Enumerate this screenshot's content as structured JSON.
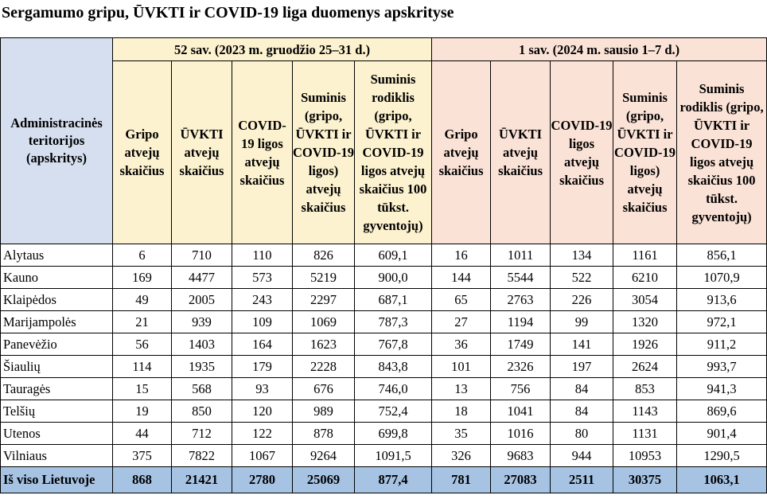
{
  "title": "Sergamumo gripu, ŪVKTI ir COVID-19 liga duomenys apskrityse",
  "header": {
    "admin": "Administracinės teritorijos (apskritys)",
    "period1": "52 sav. (2023 m.  gruodžio 25–31 d.)",
    "period2": "1 sav. (2024 m.  sausio 1–7 d.)",
    "cols": [
      "Gripo atvejų skaičius",
      "ŪVKTI atvejų skaičius",
      "COVID-19 ligos atvejų skaičius",
      "Suminis (gripo, ŪVKTI ir COVID-19 ligos) atvejų skaičius",
      "Suminis rodiklis (gripo, ŪVKTI ir COVID-19 ligos atvejų skaičius 100 tūkst. gyventojų)"
    ]
  },
  "rows": [
    {
      "name": "Alytaus",
      "v": [
        "6",
        "710",
        "110",
        "826",
        "609,1",
        "16",
        "1011",
        "134",
        "1161",
        "856,1"
      ]
    },
    {
      "name": "Kauno",
      "v": [
        "169",
        "4477",
        "573",
        "5219",
        "900,0",
        "144",
        "5544",
        "522",
        "6210",
        "1070,9"
      ]
    },
    {
      "name": "Klaipėdos",
      "v": [
        "49",
        "2005",
        "243",
        "2297",
        "687,1",
        "65",
        "2763",
        "226",
        "3054",
        "913,6"
      ]
    },
    {
      "name": "Marijampolės",
      "v": [
        "21",
        "939",
        "109",
        "1069",
        "787,3",
        "27",
        "1194",
        "99",
        "1320",
        "972,1"
      ]
    },
    {
      "name": "Panevėžio",
      "v": [
        "56",
        "1403",
        "164",
        "1623",
        "767,8",
        "36",
        "1749",
        "141",
        "1926",
        "911,2"
      ]
    },
    {
      "name": "Šiaulių",
      "v": [
        "114",
        "1935",
        "179",
        "2228",
        "843,8",
        "101",
        "2326",
        "197",
        "2624",
        "993,7"
      ]
    },
    {
      "name": "Tauragės",
      "v": [
        "15",
        "568",
        "93",
        "676",
        "746,0",
        "13",
        "756",
        "84",
        "853",
        "941,3"
      ]
    },
    {
      "name": "Telšių",
      "v": [
        "19",
        "850",
        "120",
        "989",
        "752,4",
        "18",
        "1041",
        "84",
        "1143",
        "869,6"
      ]
    },
    {
      "name": "Utenos",
      "v": [
        "44",
        "712",
        "122",
        "878",
        "699,8",
        "35",
        "1016",
        "80",
        "1131",
        "901,4"
      ]
    },
    {
      "name": "Vilniaus",
      "v": [
        "375",
        "7822",
        "1067",
        "9264",
        "1091,5",
        "326",
        "9683",
        "944",
        "10953",
        "1290,5"
      ]
    }
  ],
  "total": {
    "name": "Iš viso Lietuvoje",
    "v": [
      "868",
      "21421",
      "2780",
      "25069",
      "877,4",
      "781",
      "27083",
      "2511",
      "30375",
      "1063,1"
    ]
  }
}
